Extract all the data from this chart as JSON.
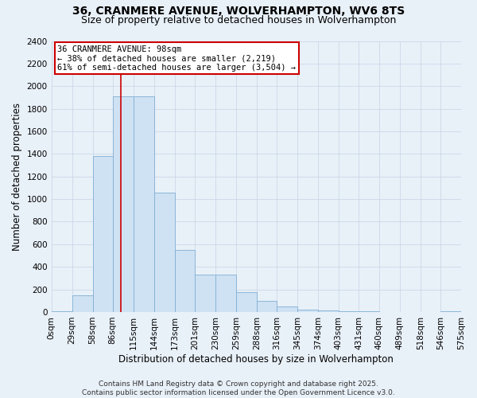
{
  "title_line1": "36, CRANMERE AVENUE, WOLVERHAMPTON, WV6 8TS",
  "title_line2": "Size of property relative to detached houses in Wolverhampton",
  "xlabel": "Distribution of detached houses by size in Wolverhampton",
  "ylabel": "Number of detached properties",
  "annotation_line1": "36 CRANMERE AVENUE: 98sqm",
  "annotation_line2": "← 38% of detached houses are smaller (2,219)",
  "annotation_line3": "61% of semi-detached houses are larger (3,504) →",
  "property_size_sqm": 98,
  "bin_edges": [
    0,
    29,
    58,
    86,
    115,
    144,
    173,
    201,
    230,
    259,
    288,
    316,
    345,
    374,
    403,
    431,
    460,
    489,
    518,
    546,
    575
  ],
  "bar_values": [
    10,
    150,
    1380,
    1910,
    1910,
    1060,
    550,
    330,
    330,
    175,
    100,
    50,
    20,
    15,
    10,
    5,
    0,
    0,
    0,
    5
  ],
  "bar_color": "#cfe2f3",
  "bar_edge_color": "#7fafd4",
  "vline_color": "#cc0000",
  "vline_x": 98,
  "ylim": [
    0,
    2400
  ],
  "yticks": [
    0,
    200,
    400,
    600,
    800,
    1000,
    1200,
    1400,
    1600,
    1800,
    2000,
    2200,
    2400
  ],
  "grid_color": "#c8d4e4",
  "background_color": "#e8f0f8",
  "annotation_box_color": "#ffffff",
  "annotation_box_edge": "#cc0000",
  "footer_line1": "Contains HM Land Registry data © Crown copyright and database right 2025.",
  "footer_line2": "Contains public sector information licensed under the Open Government Licence v3.0.",
  "tick_labels": [
    "0sqm",
    "29sqm",
    "58sqm",
    "86sqm",
    "115sqm",
    "144sqm",
    "173sqm",
    "201sqm",
    "230sqm",
    "259sqm",
    "288sqm",
    "316sqm",
    "345sqm",
    "374sqm",
    "403sqm",
    "431sqm",
    "460sqm",
    "489sqm",
    "518sqm",
    "546sqm",
    "575sqm"
  ],
  "title_fontsize": 10,
  "subtitle_fontsize": 9,
  "axis_label_fontsize": 8.5,
  "tick_fontsize": 7.5,
  "annotation_fontsize": 7.5,
  "footer_fontsize": 6.5
}
